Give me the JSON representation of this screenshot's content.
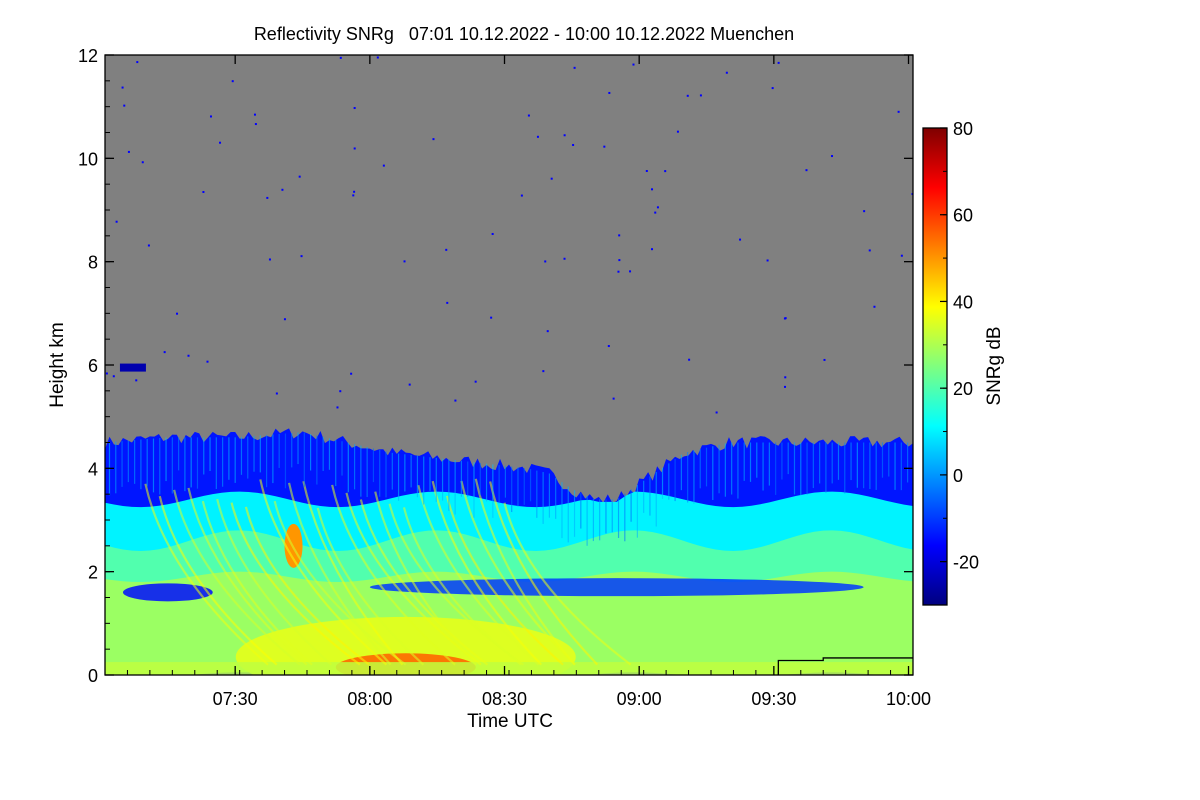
{
  "chart_data": {
    "type": "heatmap",
    "title": "Reflectivity SNRg   07:01 10.12.2022 - 10:00 10.12.2022 Muenchen",
    "xlabel": "Time UTC",
    "ylabel": "Height km",
    "colorbar_label": "SNRg dB",
    "x_range_minutes_utc": [
      421,
      601
    ],
    "x_ticks": [
      {
        "label": "07:30",
        "minutes": 450
      },
      {
        "label": "08:00",
        "minutes": 480
      },
      {
        "label": "08:30",
        "minutes": 510
      },
      {
        "label": "09:00",
        "minutes": 540
      },
      {
        "label": "09:30",
        "minutes": 570
      },
      {
        "label": "10:00",
        "minutes": 600
      }
    ],
    "y_range_km": [
      0,
      12
    ],
    "y_ticks": [
      0,
      2,
      4,
      6,
      8,
      10,
      12
    ],
    "colorbar_range_db": [
      -30,
      80
    ],
    "colorbar_ticks": [
      -20,
      0,
      20,
      40,
      60,
      80
    ],
    "no_signal_color": "#808080",
    "colormap": [
      "#00007f",
      "#0000ff",
      "#007fff",
      "#00ffff",
      "#7fff7f",
      "#ffff00",
      "#ff7f00",
      "#ff0000",
      "#7f0000"
    ],
    "cloud_top_km": [
      {
        "minutes": 421,
        "km": 4.5
      },
      {
        "minutes": 435,
        "km": 4.6
      },
      {
        "minutes": 450,
        "km": 4.6
      },
      {
        "minutes": 465,
        "km": 4.7
      },
      {
        "minutes": 475,
        "km": 4.5
      },
      {
        "minutes": 485,
        "km": 4.3
      },
      {
        "minutes": 495,
        "km": 4.2
      },
      {
        "minutes": 505,
        "km": 4.1
      },
      {
        "minutes": 515,
        "km": 4.0
      },
      {
        "minutes": 520,
        "km": 3.9
      },
      {
        "minutes": 525,
        "km": 3.6
      },
      {
        "minutes": 530,
        "km": 3.4
      },
      {
        "minutes": 535,
        "km": 3.4
      },
      {
        "minutes": 540,
        "km": 3.7
      },
      {
        "minutes": 545,
        "km": 4.0
      },
      {
        "minutes": 550,
        "km": 4.3
      },
      {
        "minutes": 560,
        "km": 4.5
      },
      {
        "minutes": 580,
        "km": 4.5
      },
      {
        "minutes": 601,
        "km": 4.5
      }
    ],
    "features": [
      {
        "name": "weak-echo-layer",
        "km_from": 3.3,
        "km_to": 4.6,
        "snr_db": -12
      },
      {
        "name": "mid-echo-layer",
        "km_from": 2.4,
        "km_to": 3.4,
        "snr_db": 12
      },
      {
        "name": "low-snr-band",
        "minutes_from": 425,
        "minutes_to": 445,
        "km": 1.6,
        "snr_db": -15
      },
      {
        "name": "low-snr-band",
        "minutes_from": 480,
        "minutes_to": 590,
        "km": 1.7,
        "snr_db": -10
      },
      {
        "name": "high-snr-patch",
        "minutes": 463,
        "km": 2.5,
        "snr_db": 50
      },
      {
        "name": "near-surface-maximum",
        "minutes": 488,
        "km": 0.2,
        "snr_db": 55
      },
      {
        "name": "isolated-echo",
        "minutes": 427,
        "km": 5.95,
        "snr_db": -25
      }
    ],
    "annotation_line_km": [
      {
        "minutes": 571,
        "km": 0.0
      },
      {
        "minutes": 571,
        "km": 0.28
      },
      {
        "minutes": 581,
        "km": 0.28
      },
      {
        "minutes": 581,
        "km": 0.33
      },
      {
        "minutes": 601,
        "km": 0.33
      }
    ]
  }
}
